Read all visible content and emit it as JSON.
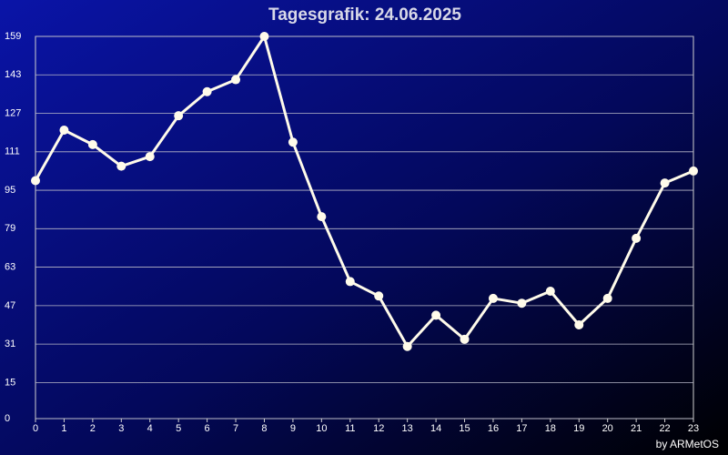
{
  "chart_data": {
    "type": "line",
    "title": "Tagesgrafik: 24.06.2025",
    "credit": "by ARMetOS",
    "x": [
      0,
      1,
      2,
      3,
      4,
      5,
      6,
      7,
      8,
      9,
      10,
      11,
      12,
      13,
      14,
      15,
      16,
      17,
      18,
      19,
      20,
      21,
      22,
      23
    ],
    "values": [
      99,
      120,
      114,
      105,
      109,
      126,
      136,
      141,
      159,
      115,
      84,
      57,
      51,
      30,
      43,
      33,
      50,
      48,
      53,
      39,
      50,
      75,
      98,
      103
    ],
    "color": "#fffbea",
    "xlim": [
      0,
      23
    ],
    "xticks": [
      0,
      1,
      2,
      3,
      4,
      5,
      6,
      7,
      8,
      9,
      10,
      11,
      12,
      13,
      14,
      15,
      16,
      17,
      18,
      19,
      20,
      21,
      22,
      23
    ],
    "ylim": [
      0,
      159
    ],
    "yticks": [
      0,
      15,
      31,
      47,
      63,
      79,
      95,
      111,
      127,
      143,
      159
    ],
    "grid": true
  }
}
